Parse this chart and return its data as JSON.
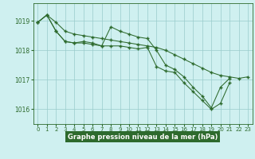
{
  "series1_x": [
    0,
    1,
    2,
    3,
    4,
    5,
    6,
    7,
    8,
    9,
    10,
    11,
    12,
    13,
    14,
    15,
    16,
    17,
    18,
    19,
    20,
    21,
    22,
    23
  ],
  "series1_y": [
    1018.95,
    1019.2,
    1018.95,
    1018.65,
    1018.55,
    1018.5,
    1018.45,
    1018.4,
    1018.35,
    1018.3,
    1018.25,
    1018.2,
    1018.15,
    1018.1,
    1018.0,
    1017.85,
    1017.7,
    1017.55,
    1017.4,
    1017.25,
    1017.15,
    1017.1,
    1017.05,
    1017.1
  ],
  "series2_x": [
    0,
    1,
    2,
    3,
    4,
    5,
    6,
    7,
    8,
    9,
    10,
    11,
    12,
    13,
    14,
    15,
    16,
    17,
    18,
    19,
    20,
    21
  ],
  "series2_y": [
    1018.95,
    1019.2,
    1018.65,
    1018.3,
    1018.25,
    1018.3,
    1018.25,
    1018.15,
    1018.8,
    1018.65,
    1018.55,
    1018.45,
    1018.4,
    1018.0,
    1017.5,
    1017.35,
    1017.1,
    1016.75,
    1016.45,
    1016.05,
    1016.75,
    1017.05
  ],
  "series3_x": [
    0,
    1,
    2,
    3,
    4,
    5,
    6,
    7,
    8,
    9,
    10,
    11,
    12,
    13,
    14,
    15,
    16,
    17,
    18,
    19,
    20,
    21
  ],
  "series3_y": [
    1018.95,
    1019.2,
    1018.65,
    1018.3,
    1018.25,
    1018.25,
    1018.2,
    1018.15,
    1018.15,
    1018.15,
    1018.1,
    1018.05,
    1018.1,
    1017.45,
    1017.3,
    1017.25,
    1016.9,
    1016.6,
    1016.3,
    1016.0,
    1016.2,
    1016.9
  ],
  "ylim": [
    1015.5,
    1019.6
  ],
  "yticks": [
    1016,
    1017,
    1018,
    1019
  ],
  "xticks": [
    0,
    1,
    2,
    3,
    4,
    5,
    6,
    7,
    8,
    9,
    10,
    11,
    12,
    13,
    14,
    15,
    16,
    17,
    18,
    19,
    20,
    21,
    22,
    23
  ],
  "line_color": "#2d6a2d",
  "bg_color": "#cff0f0",
  "grid_color": "#99cccc",
  "xlabel": "Graphe pression niveau de la mer (hPa)",
  "xlabel_bg": "#2d6a2d",
  "xlabel_fg": "#ffffff"
}
